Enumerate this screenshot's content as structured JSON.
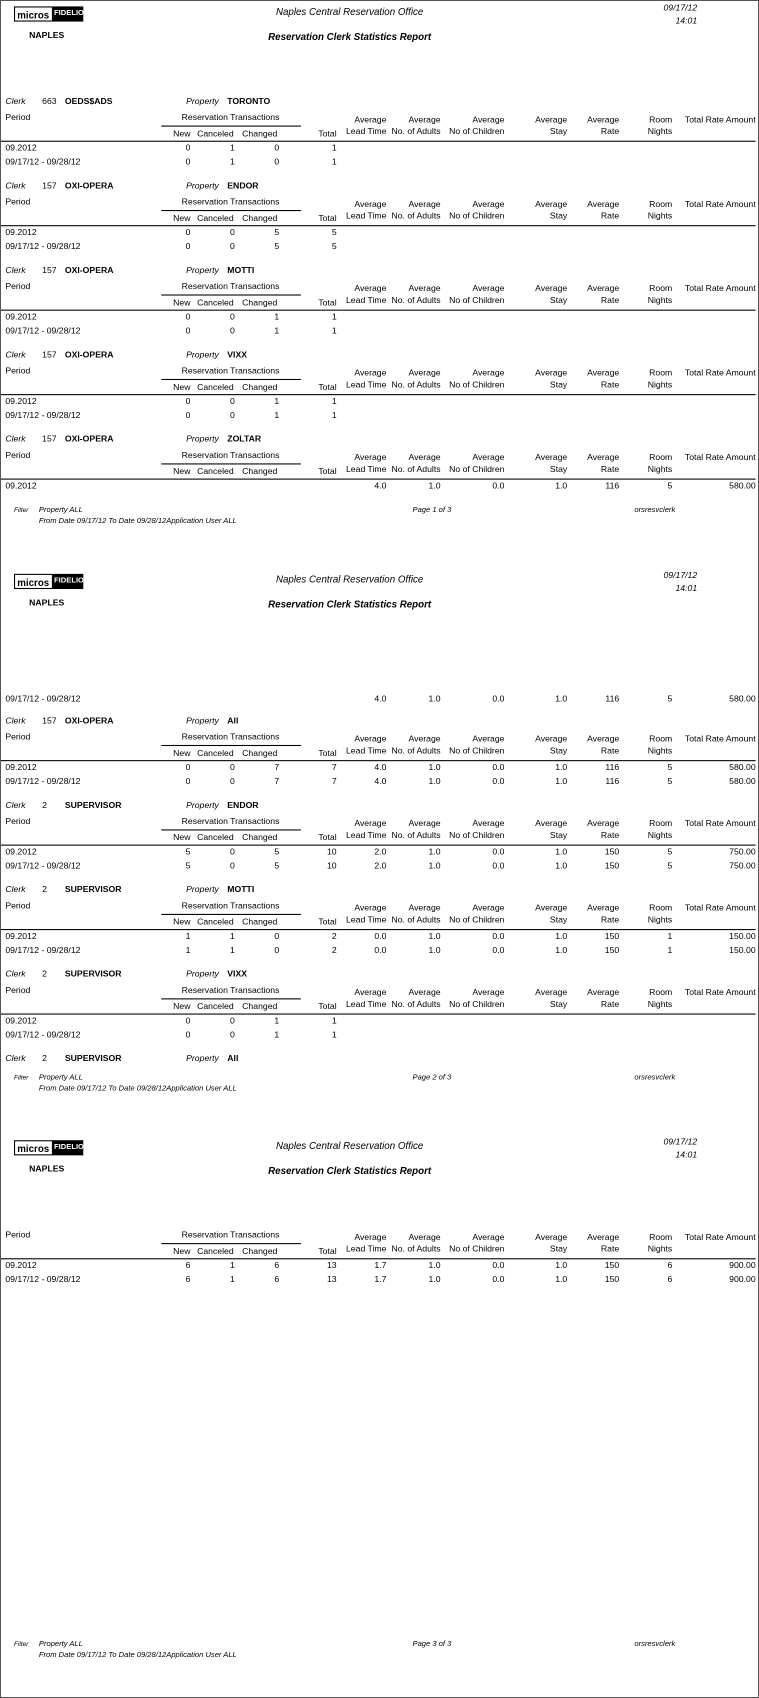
{
  "header": {
    "logo_left": "micros",
    "logo_right": "FIDELIO",
    "office": "Naples Central Reservation Office",
    "date": "09/17/12",
    "time": "14:01",
    "location": "NAPLES",
    "title": "Reservation Clerk Statistics Report"
  },
  "labels": {
    "clerk": "Clerk",
    "property": "Property"
  },
  "columns": {
    "period": "Period",
    "group": "Reservation Transactions",
    "sub": [
      "New",
      "Canceled",
      "Changed"
    ],
    "total": "Total",
    "averages": [
      [
        "Average",
        "Lead Time"
      ],
      [
        "Average",
        "No. of Adults"
      ],
      [
        "Average",
        "No of Children"
      ],
      [
        "Average",
        "Stay"
      ],
      [
        "Average",
        "Rate"
      ],
      [
        "Room",
        "Nights"
      ],
      [
        "Total Rate Amount"
      ]
    ]
  },
  "footer": {
    "filter": "Filter",
    "property": "Property  ALL",
    "dates": "From Date 09/17/12    To Date 09/28/12Application User  ALL",
    "report": "orsresvclerk"
  },
  "pages": [
    {
      "page_label": "Page 1 of 3",
      "items": [
        {
          "clerk": "663",
          "name": "OEDS$ADS",
          "property": "TORONTO",
          "head": true,
          "rows": [
            [
              "09.2012",
              "0",
              "1",
              "0",
              "1"
            ],
            [
              "09/17/12 - 09/28/12",
              "0",
              "1",
              "0",
              "1"
            ]
          ]
        },
        {
          "clerk": "157",
          "name": "OXI-OPERA",
          "property": "ENDOR",
          "head": true,
          "rows": [
            [
              "09.2012",
              "0",
              "0",
              "5",
              "5"
            ],
            [
              "09/17/12 - 09/28/12",
              "0",
              "0",
              "5",
              "5"
            ]
          ]
        },
        {
          "clerk": "157",
          "name": "OXI-OPERA",
          "property": "MOTTI",
          "head": true,
          "rows": [
            [
              "09.2012",
              "0",
              "0",
              "1",
              "1"
            ],
            [
              "09/17/12 - 09/28/12",
              "0",
              "0",
              "1",
              "1"
            ]
          ]
        },
        {
          "clerk": "157",
          "name": "OXI-OPERA",
          "property": "VIXX",
          "head": true,
          "rows": [
            [
              "09.2012",
              "0",
              "0",
              "1",
              "1"
            ],
            [
              "09/17/12 - 09/28/12",
              "0",
              "0",
              "1",
              "1"
            ]
          ]
        },
        {
          "clerk": "157",
          "name": "OXI-OPERA",
          "property": "ZOLTAR",
          "head": true,
          "rows": [
            [
              "09.2012",
              null,
              null,
              null,
              null,
              "4.0",
              "1.0",
              "0.0",
              "1.0",
              "116",
              "5",
              "580.00"
            ]
          ]
        }
      ]
    },
    {
      "page_label": "Page 2 of 3",
      "items": [
        {
          "head": false,
          "rows": [
            [
              "09/17/12 - 09/28/12",
              null,
              null,
              null,
              null,
              "4.0",
              "1.0",
              "0.0",
              "1.0",
              "116",
              "5",
              "580.00"
            ]
          ]
        },
        {
          "clerk": "157",
          "name": "OXI-OPERA",
          "property": "All",
          "head": true,
          "rows": [
            [
              "09.2012",
              "0",
              "0",
              "7",
              "7",
              "4.0",
              "1.0",
              "0.0",
              "1.0",
              "116",
              "5",
              "580.00"
            ],
            [
              "09/17/12 - 09/28/12",
              "0",
              "0",
              "7",
              "7",
              "4.0",
              "1.0",
              "0.0",
              "1.0",
              "116",
              "5",
              "580.00"
            ]
          ]
        },
        {
          "clerk": "2",
          "name": "SUPERVISOR",
          "property": "ENDOR",
          "head": true,
          "rows": [
            [
              "09.2012",
              "5",
              "0",
              "5",
              "10",
              "2.0",
              "1.0",
              "0.0",
              "1.0",
              "150",
              "5",
              "750.00"
            ],
            [
              "09/17/12 - 09/28/12",
              "5",
              "0",
              "5",
              "10",
              "2.0",
              "1.0",
              "0.0",
              "1.0",
              "150",
              "5",
              "750.00"
            ]
          ]
        },
        {
          "clerk": "2",
          "name": "SUPERVISOR",
          "property": "MOTTI",
          "head": true,
          "rows": [
            [
              "09.2012",
              "1",
              "1",
              "0",
              "2",
              "0.0",
              "1.0",
              "0.0",
              "1.0",
              "150",
              "1",
              "150.00"
            ],
            [
              "09/17/12 - 09/28/12",
              "1",
              "1",
              "0",
              "2",
              "0.0",
              "1.0",
              "0.0",
              "1.0",
              "150",
              "1",
              "150.00"
            ]
          ]
        },
        {
          "clerk": "2",
          "name": "SUPERVISOR",
          "property": "VIXX",
          "head": true,
          "rows": [
            [
              "09.2012",
              "0",
              "0",
              "1",
              "1"
            ],
            [
              "09/17/12 - 09/28/12",
              "0",
              "0",
              "1",
              "1"
            ]
          ]
        },
        {
          "clerk": "2",
          "name": "SUPERVISOR",
          "property": "All",
          "head": false,
          "rows": []
        }
      ]
    },
    {
      "page_label": "Page 3 of 3",
      "items": [
        {
          "head": true,
          "rows": [
            [
              "09.2012",
              "6",
              "1",
              "6",
              "13",
              "1.7",
              "1.0",
              "0.0",
              "1.0",
              "150",
              "6",
              "900.00"
            ],
            [
              "09/17/12 - 09/28/12",
              "6",
              "1",
              "6",
              "13",
              "1.7",
              "1.0",
              "0.0",
              "1.0",
              "150",
              "6",
              "900.00"
            ]
          ]
        }
      ]
    }
  ]
}
